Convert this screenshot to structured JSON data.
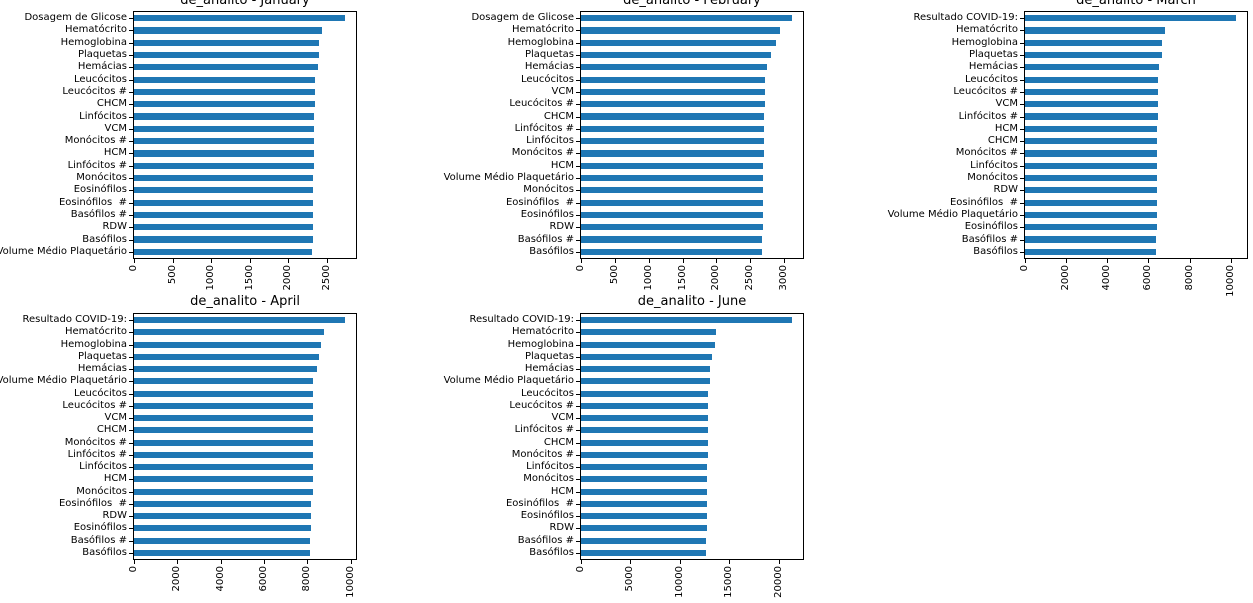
{
  "figure": {
    "background": "#ffffff",
    "bar_color": "#1f77b4",
    "axis_color": "#000000",
    "grid": false,
    "legend": "none",
    "title_prefix": "de_analito"
  },
  "chart_data": [
    {
      "type": "bar",
      "orientation": "horizontal",
      "title": "de_analito - January",
      "month": "January",
      "categories": [
        "Dosagem de Glicose",
        "Hematócrito",
        "Hemoglobina",
        "Plaquetas",
        "Hemácias",
        "Leucócitos",
        "Leucócitos #",
        "CHCM",
        "Linfócitos",
        "VCM",
        "Monócitos #",
        "HCM",
        "Linfócitos #",
        "Monócitos",
        "Eosinófilos",
        "Eosinófilos  #",
        "Basófilos #",
        "RDW",
        "Basófilos",
        "Volume Médio Plaquetário"
      ],
      "values": [
        2738,
        2431,
        2401,
        2399,
        2384,
        2341,
        2339,
        2338,
        2337,
        2336,
        2335,
        2334,
        2333,
        2321,
        2319,
        2318,
        2317,
        2316,
        2315,
        2303
      ],
      "xticks": [
        0,
        500,
        1000,
        1500,
        2000,
        2500
      ],
      "xlim": [
        0,
        2875
      ]
    },
    {
      "type": "bar",
      "orientation": "horizontal",
      "title": "de_analito - February",
      "month": "February",
      "categories": [
        "Dosagem de Glicose",
        "Hematócrito",
        "Hemoglobina",
        "Plaquetas",
        "Hemácias",
        "Leucócitos",
        "VCM",
        "Leucócitos #",
        "CHCM",
        "Linfócitos #",
        "Linfócitos",
        "Monócitos #",
        "HCM",
        "Volume Médio Plaquetário",
        "Monócitos",
        "Eosinófilos  #",
        "Eosinófilos",
        "RDW",
        "Basófilos #",
        "Basófilos"
      ],
      "values": [
        3124,
        2936,
        2876,
        2802,
        2753,
        2714,
        2713,
        2712,
        2711,
        2710,
        2709,
        2698,
        2696,
        2695,
        2694,
        2689,
        2688,
        2687,
        2676,
        2675
      ],
      "xticks": [
        0,
        500,
        1000,
        1500,
        2000,
        2500,
        3000
      ],
      "xlim": [
        0,
        3280
      ]
    },
    {
      "type": "bar",
      "orientation": "horizontal",
      "title": "de_analito - March",
      "month": "March",
      "categories": [
        "Resultado COVID-19:",
        "Hematócrito",
        "Hemoglobina",
        "Plaquetas",
        "Hemácias",
        "Leucócitos",
        "Leucócitos #",
        "VCM",
        "Linfócitos #",
        "HCM",
        "CHCM",
        "Monócitos #",
        "Linfócitos",
        "Monócitos",
        "RDW",
        "Eosinófilos  #",
        "Volume Médio Plaquetário",
        "Eosinófilos",
        "Basófilos #",
        "Basófilos"
      ],
      "values": [
        10274,
        6780,
        6640,
        6636,
        6525,
        6446,
        6444,
        6442,
        6440,
        6438,
        6436,
        6434,
        6432,
        6430,
        6428,
        6426,
        6424,
        6415,
        6372,
        6370
      ],
      "xticks": [
        0,
        2000,
        4000,
        6000,
        8000,
        10000
      ],
      "xlim": [
        0,
        10788
      ]
    },
    {
      "type": "bar",
      "orientation": "horizontal",
      "title": "de_analito - April",
      "month": "April",
      "categories": [
        "Resultado COVID-19:",
        "Hematócrito",
        "Hemoglobina",
        "Plaquetas",
        "Hemácias",
        "Volume Médio Plaquetário",
        "Leucócitos",
        "Leucócitos #",
        "VCM",
        "CHCM",
        "Monócitos #",
        "Linfócitos #",
        "Linfócitos",
        "HCM",
        "Monócitos",
        "Eosinófilos  #",
        "RDW",
        "Eosinófilos",
        "Basófilos #",
        "Basófilos"
      ],
      "values": [
        9750,
        8770,
        8620,
        8522,
        8420,
        8262,
        8252,
        8250,
        8248,
        8246,
        8245,
        8244,
        8243,
        8242,
        8241,
        8172,
        8170,
        8162,
        8132,
        8130
      ],
      "xticks": [
        0,
        2000,
        4000,
        6000,
        8000,
        10000
      ],
      "xlim": [
        0,
        10238
      ]
    },
    {
      "type": "bar",
      "orientation": "horizontal",
      "title": "de_analito - June",
      "month": "June",
      "categories": [
        "Resultado COVID-19:",
        "Hematócrito",
        "Hemoglobina",
        "Plaquetas",
        "Hemácias",
        "Volume Médio Plaquetário",
        "Leucócitos",
        "Leucócitos #",
        "VCM",
        "Linfócitos #",
        "CHCM",
        "Monócitos #",
        "Linfócitos",
        "Monócitos",
        "HCM",
        "Eosinófilos  #",
        "Eosinófilos",
        "RDW",
        "Basófilos #",
        "Basófilos"
      ],
      "values": [
        21360,
        13590,
        13490,
        13250,
        13020,
        13000,
        12810,
        12792,
        12788,
        12784,
        12782,
        12780,
        12778,
        12776,
        12774,
        12770,
        12766,
        12762,
        12652,
        12650
      ],
      "xticks": [
        0,
        5000,
        10000,
        15000,
        20000
      ],
      "xlim": [
        0,
        22428
      ]
    }
  ]
}
